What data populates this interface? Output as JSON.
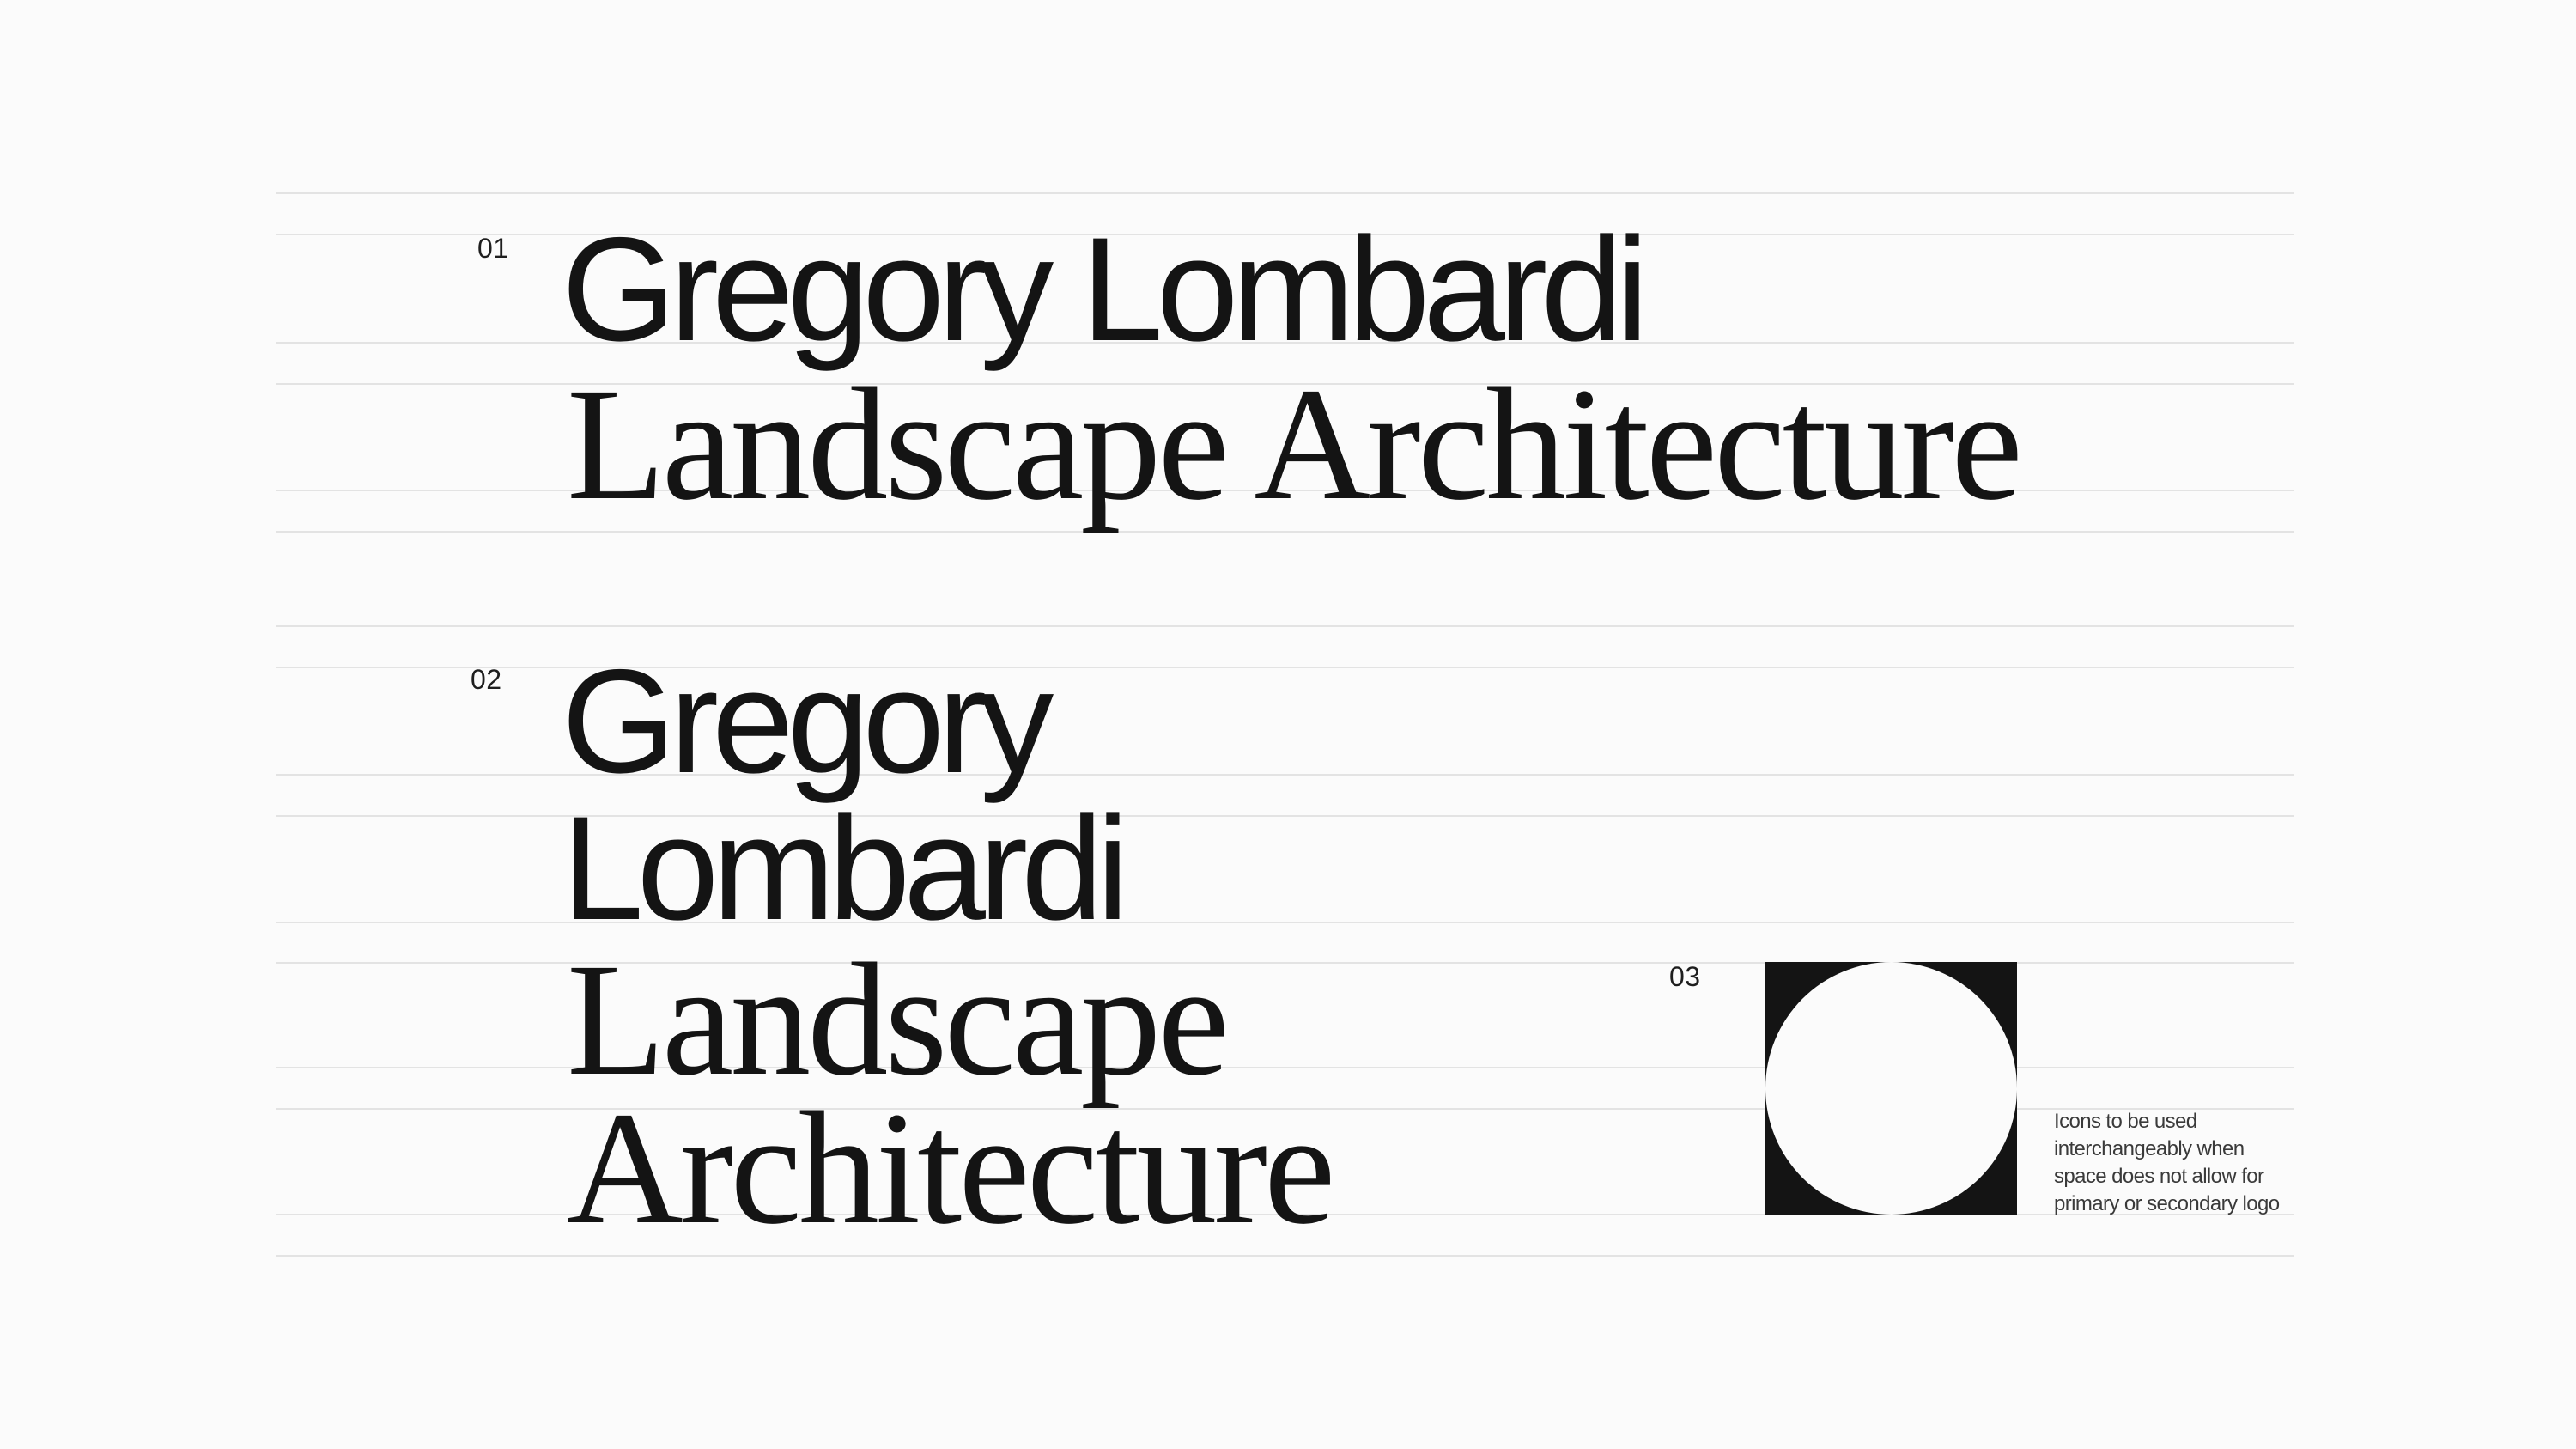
{
  "logos": {
    "primary": {
      "number": "01",
      "line1": "Gregory Lombardi",
      "line2": "Landscape Architecture"
    },
    "secondary": {
      "number": "02",
      "lines": [
        "Gregory",
        "Lombardi",
        "Landscape",
        "Architecture"
      ]
    },
    "icon": {
      "number": "03",
      "note_lines": [
        "Icons to be used",
        "interchangeably when",
        "space does not allow for",
        "primary or secondary logo"
      ]
    }
  },
  "colors": {
    "background": "#fbfbfb",
    "ink": "#141414",
    "grid_rule": "#e3e3e3"
  }
}
